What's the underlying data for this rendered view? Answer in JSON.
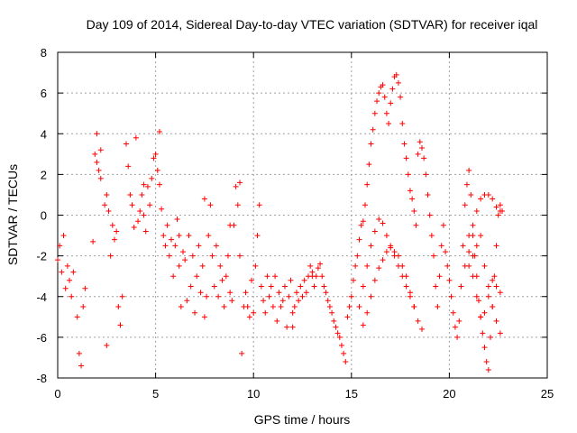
{
  "chart_data": {
    "type": "scatter",
    "title": "Day 109 of 2014, Sidereal Day-to-day VTEC variation (SDTVAR) for receiver iqal",
    "xlabel": "GPS time / hours",
    "ylabel": "SDTVAR / TECUs",
    "xlim": [
      0,
      25
    ],
    "ylim": [
      -8,
      8
    ],
    "xticks": [
      0,
      5,
      10,
      15,
      20,
      25
    ],
    "yticks": [
      -8,
      -6,
      -4,
      -2,
      0,
      2,
      4,
      6,
      8
    ],
    "grid": true,
    "marker": "+",
    "color": "#ff0000",
    "series": [
      {
        "name": "SDTVAR",
        "x": [
          0.0,
          0.1,
          0.2,
          0.3,
          0.4,
          0.5,
          0.6,
          0.7,
          0.8,
          1.0,
          1.1,
          1.2,
          1.3,
          1.4,
          1.8,
          1.9,
          2.0,
          2.1,
          2.2,
          2.4,
          2.5,
          2.6,
          2.7,
          2.8,
          2.9,
          3.0,
          3.1,
          3.2,
          3.3,
          3.5,
          3.6,
          3.7,
          3.8,
          3.9,
          4.1,
          4.2,
          4.3,
          4.4,
          4.5,
          4.6,
          4.7,
          4.8,
          4.9,
          5.0,
          5.1,
          5.2,
          5.3,
          5.4,
          5.5,
          5.6,
          5.7,
          5.8,
          5.9,
          6.0,
          6.1,
          6.2,
          6.3,
          6.4,
          6.5,
          6.6,
          6.7,
          6.8,
          6.9,
          7.0,
          7.1,
          7.2,
          7.3,
          7.4,
          7.5,
          7.6,
          7.7,
          7.8,
          7.9,
          8.0,
          8.1,
          8.2,
          8.3,
          8.4,
          8.5,
          8.6,
          8.7,
          8.8,
          8.9,
          9.0,
          9.1,
          9.2,
          9.3,
          9.4,
          9.5,
          9.6,
          9.7,
          9.8,
          9.9,
          10.0,
          10.1,
          10.2,
          10.3,
          10.4,
          10.5,
          10.6,
          10.7,
          10.8,
          10.9,
          11.0,
          11.1,
          11.2,
          11.3,
          11.4,
          11.5,
          11.6,
          11.7,
          11.8,
          11.9,
          12.0,
          12.1,
          12.2,
          12.3,
          12.4,
          12.5,
          12.6,
          12.7,
          12.8,
          12.9,
          13.0,
          13.1,
          13.2,
          13.3,
          13.4,
          13.5,
          13.6,
          13.7,
          13.8,
          13.9,
          14.0,
          14.1,
          14.2,
          14.3,
          14.4,
          14.5,
          14.6,
          14.7,
          14.8,
          14.9,
          15.0,
          15.1,
          15.2,
          15.3,
          15.4,
          15.5,
          15.6,
          15.7,
          15.8,
          15.9,
          16.0,
          16.1,
          16.2,
          16.3,
          16.4,
          16.5,
          16.6,
          16.7,
          16.8,
          16.9,
          17.0,
          17.1,
          17.2,
          17.3,
          17.4,
          17.5,
          17.6,
          17.7,
          17.8,
          17.9,
          18.0,
          18.1,
          18.2,
          18.3,
          18.4,
          18.5,
          18.6,
          18.7,
          18.8,
          18.9,
          19.0,
          19.1,
          19.2,
          19.3,
          19.4,
          19.5,
          19.6,
          19.7,
          19.8,
          19.9,
          20.0,
          20.1,
          20.2,
          20.3,
          20.4,
          20.5,
          20.6,
          20.7,
          20.8,
          20.9,
          21.0,
          21.1,
          21.2,
          21.3,
          21.4,
          21.5,
          21.6,
          21.7,
          21.8,
          21.9,
          22.0,
          22.1,
          22.2,
          22.3,
          22.4,
          22.5,
          22.6,
          22.7,
          15.6,
          15.8,
          16.0,
          16.2,
          16.4,
          16.6,
          16.8,
          17.0,
          17.2,
          17.4,
          17.6,
          17.8,
          18.0,
          18.2,
          18.4,
          18.6,
          15.4,
          15.6,
          15.8,
          16.0,
          16.2,
          16.4,
          16.6,
          16.8,
          17.0,
          17.2,
          17.4,
          17.6,
          17.8,
          18.0,
          18.2,
          21.0,
          21.2,
          21.4,
          21.6,
          21.8,
          22.0,
          22.2,
          22.4,
          22.6,
          21.0,
          21.2,
          21.4,
          21.6,
          21.8,
          22.0,
          22.2,
          22.4,
          22.6,
          20.6,
          20.8,
          21.0,
          21.2,
          21.4,
          21.6,
          21.8,
          22.0,
          22.2,
          22.4,
          22.6,
          2.0,
          2.2,
          4.0,
          5.2,
          2.5,
          9.3,
          12.0,
          13.0,
          4.4,
          7.5,
          8.8,
          6.2
        ],
        "y": [
          -2.2,
          -1.5,
          -2.8,
          -1.0,
          -3.6,
          -2.5,
          -3.2,
          -4.0,
          -2.8,
          -5.0,
          -6.8,
          -7.4,
          -4.5,
          -3.6,
          -1.3,
          3.0,
          2.6,
          2.2,
          1.8,
          0.5,
          1.0,
          0.2,
          -2.0,
          -0.5,
          -1.2,
          -0.8,
          -4.5,
          -5.4,
          -4.0,
          3.5,
          2.4,
          1.0,
          0.5,
          -0.6,
          -0.3,
          0.2,
          1.0,
          0.0,
          -0.8,
          1.4,
          0.5,
          1.8,
          2.8,
          3.0,
          2.2,
          1.5,
          0.3,
          -1.0,
          -1.5,
          -0.5,
          -2.0,
          -1.2,
          -3.0,
          -1.5,
          -0.2,
          -2.5,
          -4.5,
          -1.8,
          -2.2,
          -4.2,
          -1.0,
          -3.5,
          -2.0,
          -4.8,
          -3.0,
          -1.5,
          -3.8,
          -2.5,
          -5.0,
          -4.0,
          -1.0,
          0.5,
          -2.0,
          -3.5,
          -1.5,
          -4.0,
          -2.5,
          -3.2,
          -4.5,
          -3.0,
          -2.0,
          -3.8,
          -4.2,
          -0.5,
          1.4,
          0.5,
          -2.0,
          -6.8,
          -4.5,
          -3.8,
          -4.5,
          -5.0,
          -3.2,
          -4.8,
          -2.5,
          -1.0,
          0.5,
          -3.5,
          -4.2,
          -4.8,
          -3.0,
          -4.0,
          -3.5,
          -4.5,
          -3.0,
          -5.2,
          -3.8,
          -4.5,
          -4.2,
          -3.5,
          -5.5,
          -4.0,
          -3.2,
          -4.8,
          -4.5,
          -3.8,
          -4.2,
          -3.5,
          -4.0,
          -3.2,
          -3.8,
          -3.0,
          -2.5,
          -2.8,
          -3.5,
          -3.0,
          -2.6,
          -2.4,
          -3.0,
          -3.5,
          -3.8,
          -4.2,
          -4.5,
          -4.8,
          -5.2,
          -5.5,
          -5.8,
          -6.0,
          -6.4,
          -6.8,
          -7.2,
          -5.0,
          -4.5,
          -4.0,
          -3.2,
          -2.5,
          -2.0,
          -1.2,
          -0.5,
          -0.3,
          0.5,
          1.5,
          2.5,
          3.5,
          4.2,
          5.0,
          5.6,
          6.0,
          6.3,
          6.4,
          5.8,
          5.0,
          4.5,
          5.5,
          6.2,
          6.8,
          6.9,
          6.5,
          5.8,
          4.5,
          3.5,
          2.8,
          2.0,
          1.2,
          0.8,
          0.2,
          -0.5,
          3.0,
          3.6,
          3.3,
          2.8,
          2.0,
          1.0,
          0.0,
          -1.0,
          -2.0,
          -3.5,
          -4.5,
          -3.0,
          -1.5,
          -0.5,
          -1.8,
          -2.5,
          -3.2,
          -4.0,
          -4.8,
          -5.5,
          -6.0,
          -5.2,
          -3.5,
          -1.5,
          0.5,
          1.5,
          2.2,
          1.0,
          -1.0,
          -2.0,
          -3.0,
          -4.2,
          -5.0,
          -5.8,
          -6.5,
          -7.2,
          -7.6,
          -6.0,
          -4.5,
          -3.0,
          -1.5,
          0.0,
          0.5,
          0.2,
          -5.4,
          -4.8,
          -4.0,
          -3.2,
          -2.6,
          -2.2,
          -1.8,
          -1.6,
          -1.8,
          -2.0,
          -2.5,
          -3.0,
          -3.8,
          -4.5,
          -5.2,
          -5.6,
          -4.5,
          -3.5,
          -2.5,
          -1.5,
          -0.8,
          -0.2,
          -0.4,
          -1.0,
          -1.5,
          -2.0,
          -2.5,
          -3.0,
          -3.5,
          -4.0,
          -4.5,
          -1.0,
          -0.5,
          0.2,
          0.8,
          1.0,
          1.0,
          0.8,
          0.4,
          0.2,
          -2.5,
          -2.0,
          -1.5,
          -1.0,
          -2.5,
          -3.5,
          -4.5,
          -5.2,
          -5.8,
          -3.5,
          -2.5,
          -1.8,
          -3.0,
          -4.0,
          -5.0,
          -4.8,
          -4.0,
          -3.2,
          -3.5,
          -3.8,
          4.0,
          3.2,
          3.8,
          4.1,
          -6.4,
          1.6,
          -5.5,
          -3.0,
          1.5,
          0.8,
          -0.5,
          -1.0
        ]
      }
    ]
  }
}
